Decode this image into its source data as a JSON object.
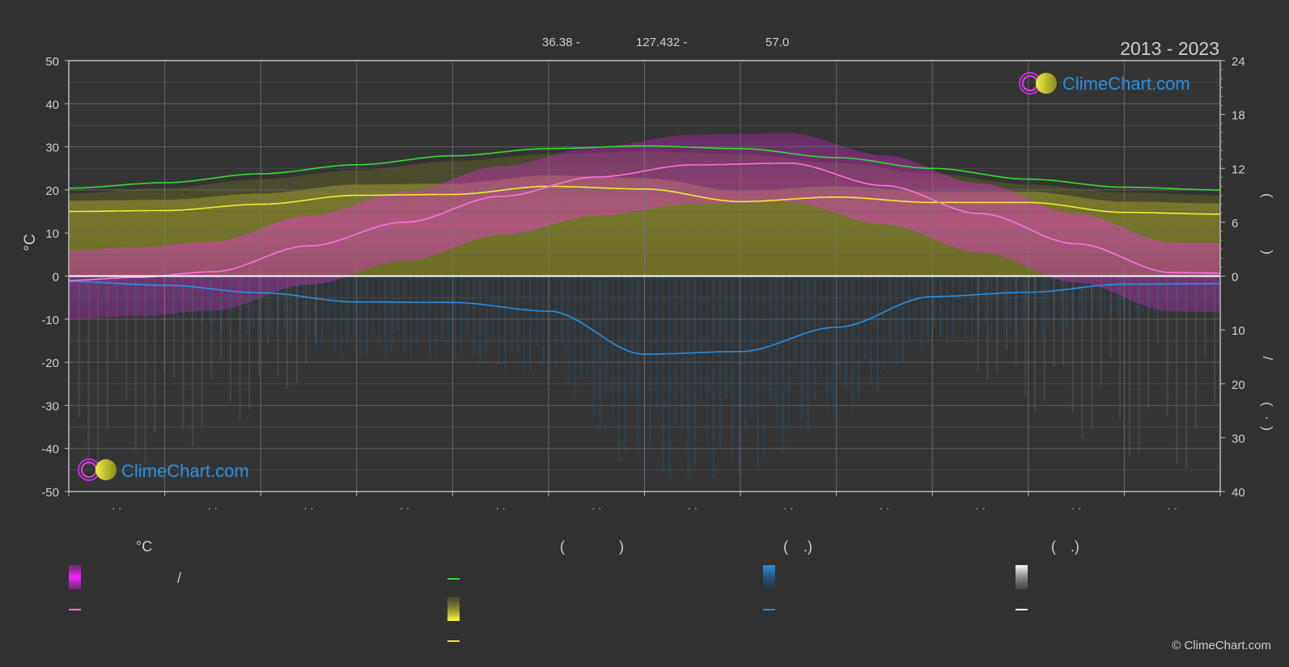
{
  "header": {
    "lat": "36.38 -",
    "lon": "127.432 -",
    "elev": "57.0",
    "years": "2013 - 2023"
  },
  "brand": {
    "name": "ClimeChart.com",
    "copyright": "© ClimeChart.com"
  },
  "chart_data": {
    "type": "line",
    "ylabel_left": "°C",
    "ylim_left": [
      -50,
      50
    ],
    "yticks_left": [
      "50",
      "40",
      "30",
      "20",
      "10",
      "0",
      "-10",
      "-20",
      "-30",
      "-40",
      "-50"
    ],
    "ylim_right_top": [
      0,
      24
    ],
    "yticks_right_top": [
      "24",
      "18",
      "12",
      "6",
      "0"
    ],
    "ylim_right_bottom": [
      0,
      40
    ],
    "yticks_right_bottom": [
      "10",
      "20",
      "30",
      "40"
    ],
    "right_axis_glyphs": [
      "(",
      ")",
      "/",
      "(",
      "·",
      ")"
    ],
    "x_tick_labels": [
      "· ·",
      "· ·",
      "· ·",
      "· ·",
      "· ·",
      "· ·",
      "· ·",
      "· ·",
      "· ·",
      "· ·",
      "· ·",
      "· ·"
    ],
    "months_x": [
      0.5,
      1.5,
      2.5,
      3.5,
      4.5,
      5.5,
      6.5,
      7.5,
      8.5,
      9.5,
      10.5,
      11.5
    ],
    "series": [
      {
        "key": "daylight",
        "color": "#33dd33",
        "x": [
          0,
          1,
          2,
          3,
          4,
          5,
          6,
          7,
          8,
          9,
          10,
          11,
          12
        ],
        "values": [
          9.8,
          10.4,
          11.4,
          12.4,
          13.4,
          14.2,
          14.5,
          14.2,
          13.2,
          12.0,
          10.8,
          9.9,
          9.6
        ]
      },
      {
        "key": "sunshine",
        "color": "#eeee33",
        "x": [
          0,
          1,
          2,
          3,
          4,
          5,
          6,
          7,
          8,
          9,
          10,
          11,
          12
        ],
        "values": [
          7.2,
          7.3,
          8.0,
          9.0,
          9.1,
          10.0,
          9.7,
          8.3,
          8.8,
          8.2,
          8.2,
          7.1,
          6.9
        ]
      },
      {
        "key": "temp_mean",
        "color": "#ff70e0",
        "x": [
          0,
          0.7,
          1.5,
          2.5,
          3.5,
          4.5,
          5.5,
          6.5,
          7.5,
          8.5,
          9.5,
          10.5,
          11.5,
          12
        ],
        "values": [
          -1.0,
          -0.3,
          1.0,
          7.0,
          12.5,
          18.5,
          23.0,
          25.8,
          26.2,
          21.0,
          14.5,
          7.5,
          0.8,
          0.7
        ]
      },
      {
        "key": "precip",
        "color": "#2a90e0",
        "x": [
          0,
          1,
          2,
          3,
          4,
          5,
          6,
          7,
          8,
          9,
          10,
          11,
          12
        ],
        "values": [
          1.0,
          1.7,
          3.1,
          4.8,
          4.9,
          6.5,
          14.5,
          14.0,
          9.5,
          3.8,
          3.0,
          1.5,
          1.4
        ]
      }
    ]
  },
  "legend": {
    "col1": {
      "header": "°C",
      "row1_sep": "/"
    },
    "col2": {
      "header_open": "(",
      "header_close": ")"
    },
    "col3": {
      "header_open": "(",
      "header_close": ".)"
    },
    "col4": {
      "header_open": "(",
      "header_close": ".)"
    },
    "colors": {
      "temp_band": "#e020e0",
      "temp_line": "#ff70e0",
      "daylight": "#33dd33",
      "sunshine_band": "#dddd33",
      "sunshine_line": "#eeee33",
      "precip_band": "#2a90e0",
      "precip_line": "#2a90e0",
      "snow_band": "#ffffff",
      "snow_line": "#ffffff"
    }
  }
}
